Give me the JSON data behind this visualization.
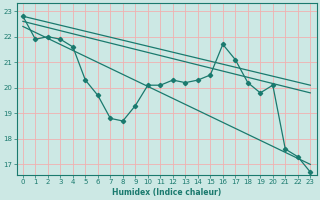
{
  "xlabel": "Humidex (Indice chaleur)",
  "bg_color": "#cce8e4",
  "line_color": "#1a7a6e",
  "grid_color": "#f0b0b0",
  "axis_color": "#1a7a6e",
  "text_color": "#1a7a6e",
  "xlim": [
    -0.5,
    23.5
  ],
  "ylim": [
    16.6,
    23.3
  ],
  "yticks": [
    17,
    18,
    19,
    20,
    21,
    22,
    23
  ],
  "xticks": [
    0,
    1,
    2,
    3,
    4,
    5,
    6,
    7,
    8,
    9,
    10,
    11,
    12,
    13,
    14,
    15,
    16,
    17,
    18,
    19,
    20,
    21,
    22,
    23
  ],
  "jagged_x": [
    0,
    1,
    2,
    3,
    4,
    5,
    6,
    7,
    8,
    9,
    10,
    11,
    12,
    13,
    14,
    15,
    16,
    17,
    18,
    19,
    20,
    21,
    22,
    23
  ],
  "jagged_y": [
    22.8,
    21.9,
    22.0,
    21.9,
    21.6,
    20.3,
    19.7,
    18.8,
    18.7,
    19.3,
    20.1,
    20.1,
    20.3,
    20.2,
    20.3,
    20.5,
    21.7,
    21.1,
    20.2,
    19.8,
    20.1,
    17.6,
    17.3,
    16.7
  ],
  "trend1_x": [
    0,
    23
  ],
  "trend1_y": [
    22.8,
    20.1
  ],
  "trend2_x": [
    0,
    23
  ],
  "trend2_y": [
    22.6,
    19.8
  ],
  "trend3_x": [
    0,
    23
  ],
  "trend3_y": [
    22.4,
    17.0
  ]
}
